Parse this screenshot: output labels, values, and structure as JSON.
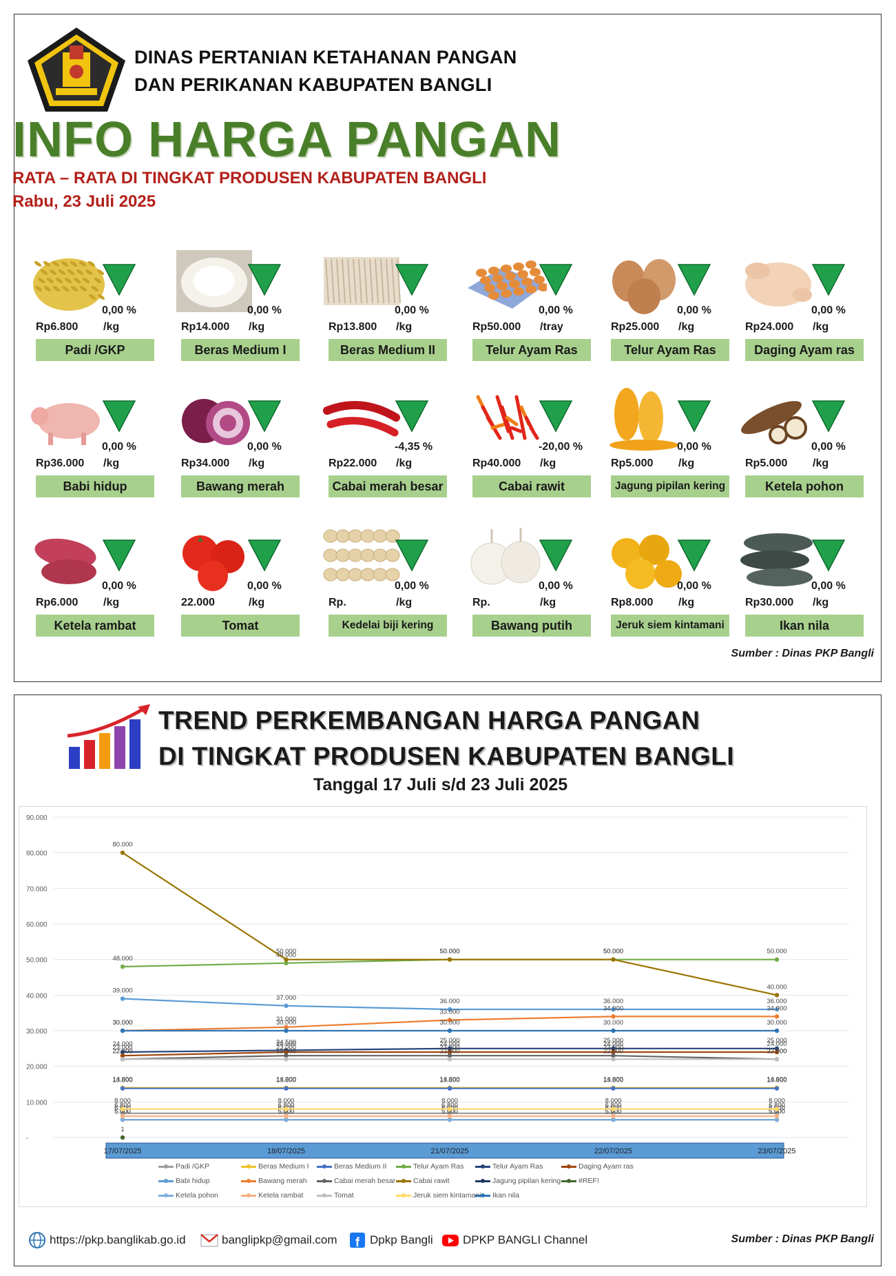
{
  "header": {
    "org_line1": "DINAS PERTANIAN KETAHANAN PANGAN",
    "org_line2": "DAN PERIKANAN KABUPATEN BANGLI",
    "title": "INFO HARGA PANGAN",
    "subtitle": "RATA – RATA DI TINGKAT PRODUSEN KABUPATEN BANGLI",
    "date": "Rabu, 23 Juli 2025"
  },
  "items": [
    {
      "name": "Padi /GKP",
      "price": "Rp6.800",
      "unit": "/kg",
      "change": "0,00 %",
      "icon": "rice-grain-icon"
    },
    {
      "name": "Beras Medium I",
      "price": "Rp14.000",
      "unit": "/kg",
      "change": "0,00 %",
      "icon": "rice-icon"
    },
    {
      "name": "Beras Medium II",
      "price": "Rp13.800",
      "unit": "/kg",
      "change": "0,00 %",
      "icon": "rice-sack-icon"
    },
    {
      "name": "Telur Ayam Ras",
      "price": "Rp50.000",
      "unit": "/tray",
      "change": "0,00 %",
      "icon": "egg-tray-icon"
    },
    {
      "name": "Telur Ayam Ras",
      "price": "Rp25.000",
      "unit": "/kg",
      "change": "0,00 %",
      "icon": "eggs-icon"
    },
    {
      "name": "Daging Ayam ras",
      "price": "Rp24.000",
      "unit": "/kg",
      "change": "0,00 %",
      "icon": "chicken-icon"
    },
    {
      "name": "Babi hidup",
      "price": "Rp36.000",
      "unit": "/kg",
      "change": "0,00 %",
      "icon": "pig-icon"
    },
    {
      "name": "Bawang merah",
      "price": "Rp34.000",
      "unit": "/kg",
      "change": "0,00 %",
      "icon": "red-onion-icon"
    },
    {
      "name": "Cabai merah besar",
      "price": "Rp22.000",
      "unit": "/kg",
      "change": "-4,35 %",
      "icon": "red-chili-icon"
    },
    {
      "name": "Cabai rawit",
      "price": "Rp40.000",
      "unit": "/kg",
      "change": "-20,00 %",
      "icon": "bird-chili-icon"
    },
    {
      "name": "Jagung pipilan kering",
      "price": "Rp5.000",
      "unit": "/kg",
      "change": "0,00 %",
      "icon": "corn-icon"
    },
    {
      "name": "Ketela pohon",
      "price": "Rp5.000",
      "unit": "/kg",
      "change": "0,00 %",
      "icon": "cassava-icon"
    },
    {
      "name": "Ketela rambat",
      "price": "Rp6.000",
      "unit": "/kg",
      "change": "0,00 %",
      "icon": "sweet-potato-icon"
    },
    {
      "name": "Tomat",
      "price": "22.000",
      "unit": "/kg",
      "change": "0,00 %",
      "icon": "tomato-icon"
    },
    {
      "name": "Kedelai biji kering",
      "price": "Rp.",
      "unit": "/kg",
      "change": "0,00 %",
      "icon": "soybean-icon"
    },
    {
      "name": "Bawang putih",
      "price": "Rp.",
      "unit": "/kg",
      "change": "0,00 %",
      "icon": "garlic-icon"
    },
    {
      "name": "Jeruk siem kintamani",
      "price": "Rp8.000",
      "unit": "/kg",
      "change": "0,00 %",
      "icon": "orange-icon"
    },
    {
      "name": "Ikan nila",
      "price": "Rp30.000",
      "unit": "/kg",
      "change": "0,00 %",
      "icon": "fish-icon"
    }
  ],
  "source_top": "Sumber : Dinas PKP Bangli",
  "trend": {
    "title_line1": "TREND PERKEMBANGAN HARGA PANGAN",
    "title_line2": "DI TINGKAT PRODUSEN KABUPATEN BANGLI",
    "period": "Tanggal 17 Juli s/d 23 Juli 2025"
  },
  "chart_data": {
    "type": "line",
    "categories": [
      "17/07/2025",
      "18/07/2025",
      "21/07/2025",
      "22/07/2025",
      "23/07/2025"
    ],
    "ylim": [
      0,
      90000
    ],
    "yticks": [
      "-",
      "10.000",
      "20.000",
      "30.000",
      "40.000",
      "50.000",
      "60.000",
      "70.000",
      "80.000",
      "90.000"
    ],
    "series": [
      {
        "name": "Padi /GKP",
        "color": "#9e9e9e",
        "values": [
          6800,
          6800,
          6800,
          6800,
          6800
        ]
      },
      {
        "name": "Beras Medium I",
        "color": "#f2c12e",
        "values": [
          14000,
          14000,
          14000,
          14000,
          14000
        ]
      },
      {
        "name": "Beras Medium II",
        "color": "#4472c4",
        "values": [
          13800,
          13800,
          13800,
          13800,
          13800
        ]
      },
      {
        "name": "Telur Ayam Ras",
        "color": "#70ad47",
        "values": [
          48000,
          49000,
          50000,
          50000,
          50000
        ]
      },
      {
        "name": "Telur Ayam Ras",
        "color": "#264478",
        "values": [
          24000,
          24500,
          25000,
          25000,
          25000
        ]
      },
      {
        "name": "Daging Ayam ras",
        "color": "#9e480e",
        "values": [
          23000,
          24000,
          24000,
          24000,
          24000
        ]
      },
      {
        "name": "Babi hidup",
        "color": "#5b9bd5",
        "values": [
          39000,
          37000,
          36000,
          36000,
          36000
        ]
      },
      {
        "name": "Bawang merah",
        "color": "#ed7d31",
        "values": [
          30000,
          31000,
          33000,
          34000,
          34000
        ]
      },
      {
        "name": "Cabai merah besar",
        "color": "#636363",
        "values": [
          22000,
          23000,
          23000,
          23000,
          22000
        ]
      },
      {
        "name": "Cabai rawit",
        "color": "#997300",
        "values": [
          80000,
          50000,
          50000,
          50000,
          40000
        ]
      },
      {
        "name": "Jagung pipilan kering",
        "color": "#1f3864",
        "values": [
          5000,
          5000,
          5000,
          5000,
          5000
        ]
      },
      {
        "name": "#REF!",
        "color": "#43682b",
        "values": [
          1,
          null,
          null,
          null,
          null
        ]
      },
      {
        "name": "Ketela pohon",
        "color": "#7cafdd",
        "values": [
          5000,
          5000,
          5000,
          5000,
          5000
        ]
      },
      {
        "name": "Ketela rambat",
        "color": "#f4b183",
        "values": [
          6000,
          6000,
          6000,
          6000,
          6000
        ]
      },
      {
        "name": "Tomat",
        "color": "#bfbfbf",
        "values": [
          22000,
          22000,
          22000,
          22000,
          22000
        ]
      },
      {
        "name": "Jeruk siem kintamani",
        "color": "#ffd966",
        "values": [
          8000,
          8000,
          8000,
          8000,
          8000
        ]
      },
      {
        "name": "Ikan nila",
        "color": "#2e75b6",
        "values": [
          30000,
          30000,
          30000,
          30000,
          30000
        ]
      }
    ]
  },
  "footer": {
    "website": "https://pkp.banglikab.go.id",
    "email": "banglipkp@gmail.com",
    "facebook": "Dpkp Bangli",
    "youtube": "DPKP BANGLI Channel",
    "source": "Sumber : Dinas PKP Bangli"
  },
  "colors": {
    "title_green": "#4a7f2a",
    "subtitle_red": "#b3201a",
    "label_bg": "#a8d08d",
    "down_arrow": "#21a04b"
  }
}
